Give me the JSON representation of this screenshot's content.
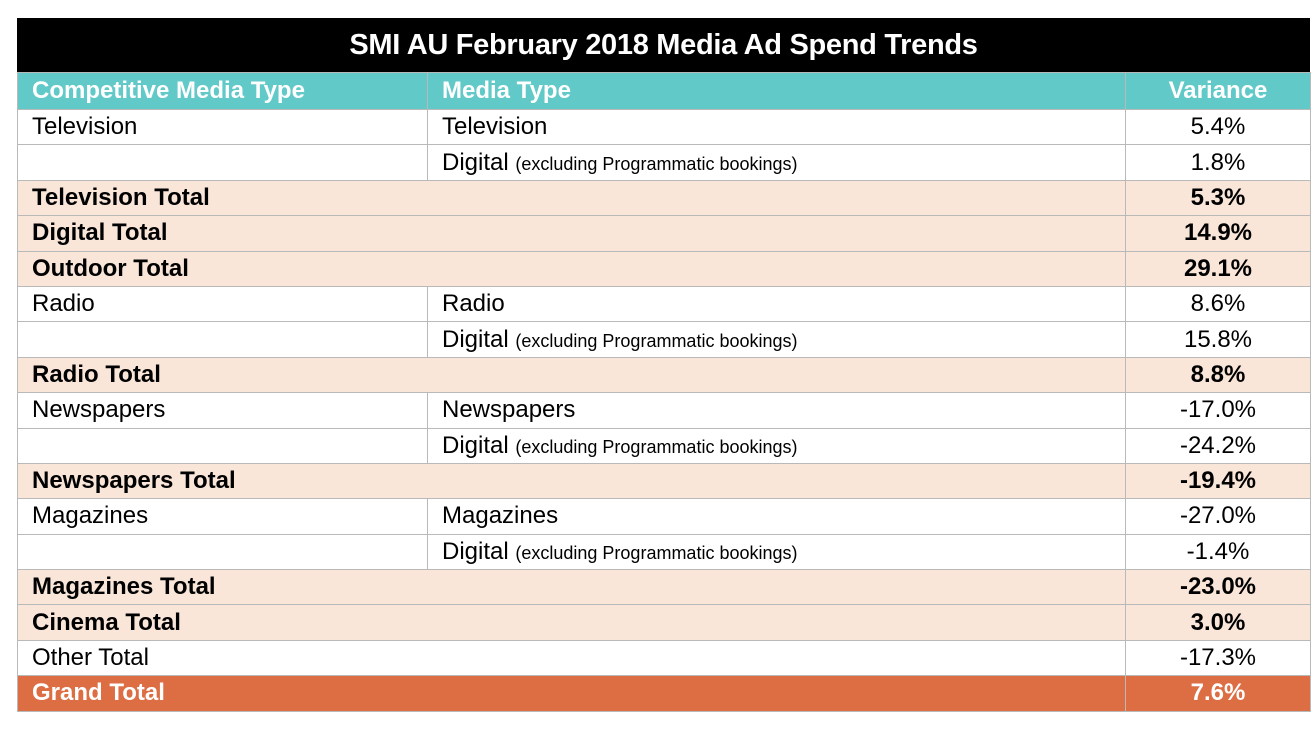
{
  "chart_data": {
    "type": "table",
    "title": "SMI AU February 2018 Media Ad Spend Trends",
    "columns": [
      "Competitive Media Type",
      "Media Type",
      "Variance"
    ],
    "rows": [
      {
        "kind": "detail",
        "competitive": "Television",
        "media": "Television",
        "note": "",
        "variance": "5.4%"
      },
      {
        "kind": "detail",
        "competitive": "",
        "media": "Digital",
        "note": "(excluding Programmatic bookings)",
        "variance": "1.8%"
      },
      {
        "kind": "total",
        "competitive": "Television Total",
        "media": "",
        "note": "",
        "variance": "5.3%"
      },
      {
        "kind": "total",
        "competitive": "Digital Total",
        "media": "",
        "note": "",
        "variance": "14.9%"
      },
      {
        "kind": "total",
        "competitive": "Outdoor Total",
        "media": "",
        "note": "",
        "variance": "29.1%"
      },
      {
        "kind": "detail",
        "competitive": "Radio",
        "media": "Radio",
        "note": "",
        "variance": "8.6%"
      },
      {
        "kind": "detail",
        "competitive": "",
        "media": "Digital",
        "note": "(excluding Programmatic bookings)",
        "variance": "15.8%"
      },
      {
        "kind": "total",
        "competitive": "Radio Total",
        "media": "",
        "note": "",
        "variance": "8.8%"
      },
      {
        "kind": "detail",
        "competitive": "Newspapers",
        "media": "Newspapers",
        "note": "",
        "variance": "-17.0%"
      },
      {
        "kind": "detail",
        "competitive": "",
        "media": "Digital",
        "note": "(excluding Programmatic bookings)",
        "variance": "-24.2%"
      },
      {
        "kind": "total",
        "competitive": "Newspapers Total",
        "media": "",
        "note": "",
        "variance": "-19.4%"
      },
      {
        "kind": "detail",
        "competitive": "Magazines",
        "media": "Magazines",
        "note": "",
        "variance": "-27.0%"
      },
      {
        "kind": "detail",
        "competitive": "",
        "media": "Digital",
        "note": "(excluding Programmatic bookings)",
        "variance": "-1.4%"
      },
      {
        "kind": "total",
        "competitive": "Magazines Total",
        "media": "",
        "note": "",
        "variance": "-23.0%"
      },
      {
        "kind": "total",
        "competitive": "Cinema Total",
        "media": "",
        "note": "",
        "variance": "3.0%"
      },
      {
        "kind": "plain-total",
        "competitive": "Other Total",
        "media": "",
        "note": "",
        "variance": "-17.3%"
      },
      {
        "kind": "grand",
        "competitive": "Grand Total",
        "media": "",
        "note": "",
        "variance": "7.6%"
      }
    ]
  },
  "colors": {
    "title_bg": "#000000",
    "header_bg": "#61c9c8",
    "total_bg": "#f9e6d9",
    "grand_bg": "#dd6d43"
  }
}
